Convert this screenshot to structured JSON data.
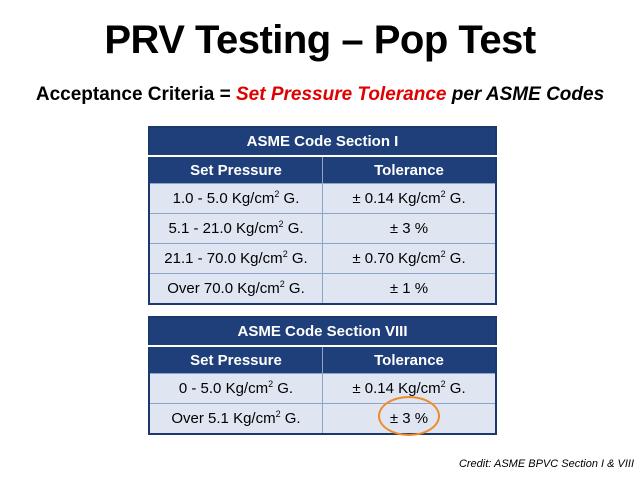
{
  "slide": {
    "title": "PRV Testing – Pop Test",
    "subtitle": {
      "prefix": "Acceptance Criteria  =  ",
      "highlight": "Set Pressure Tolerance",
      "suffix": " per ASME Codes",
      "highlight_color": "#e00000"
    },
    "credit": "Credit: ASME BPVC Section I & VIII"
  },
  "tables": [
    {
      "title": "ASME Code Section I",
      "headers": [
        "Set Pressure",
        "Tolerance"
      ],
      "rows": [
        {
          "pressure": "1.0 - 5.0 Kg/cm",
          "pressure_sup": "2",
          "pressure_tail": " G.",
          "tol": "± 0.14 Kg/cm",
          "tol_sup": "2",
          "tol_tail": " G."
        },
        {
          "pressure": "5.1 - 21.0 Kg/cm",
          "pressure_sup": "2",
          "pressure_tail": " G.",
          "tol": "± 3 %",
          "tol_sup": "",
          "tol_tail": ""
        },
        {
          "pressure": "21.1 - 70.0 Kg/cm",
          "pressure_sup": "2",
          "pressure_tail": " G.",
          "tol": "± 0.70 Kg/cm",
          "tol_sup": "2",
          "tol_tail": " G."
        },
        {
          "pressure": "Over 70.0 Kg/cm",
          "pressure_sup": "2",
          "pressure_tail": " G.",
          "tol": "± 1 %",
          "tol_sup": "",
          "tol_tail": ""
        }
      ]
    },
    {
      "title": "ASME Code Section VIII",
      "headers": [
        "Set Pressure",
        "Tolerance"
      ],
      "rows": [
        {
          "pressure": "0 - 5.0 Kg/cm",
          "pressure_sup": "2",
          "pressure_tail": " G.",
          "tol": "± 0.14 Kg/cm",
          "tol_sup": "2",
          "tol_tail": " G."
        },
        {
          "pressure": "Over 5.1 Kg/cm",
          "pressure_sup": "2",
          "pressure_tail": " G.",
          "tol": "± 3 %",
          "tol_sup": "",
          "tol_tail": ""
        }
      ]
    }
  ],
  "colors": {
    "table_header": "#1f3f7a",
    "table_cell": "#dfe6f2",
    "circle_highlight": "#f08a28"
  }
}
